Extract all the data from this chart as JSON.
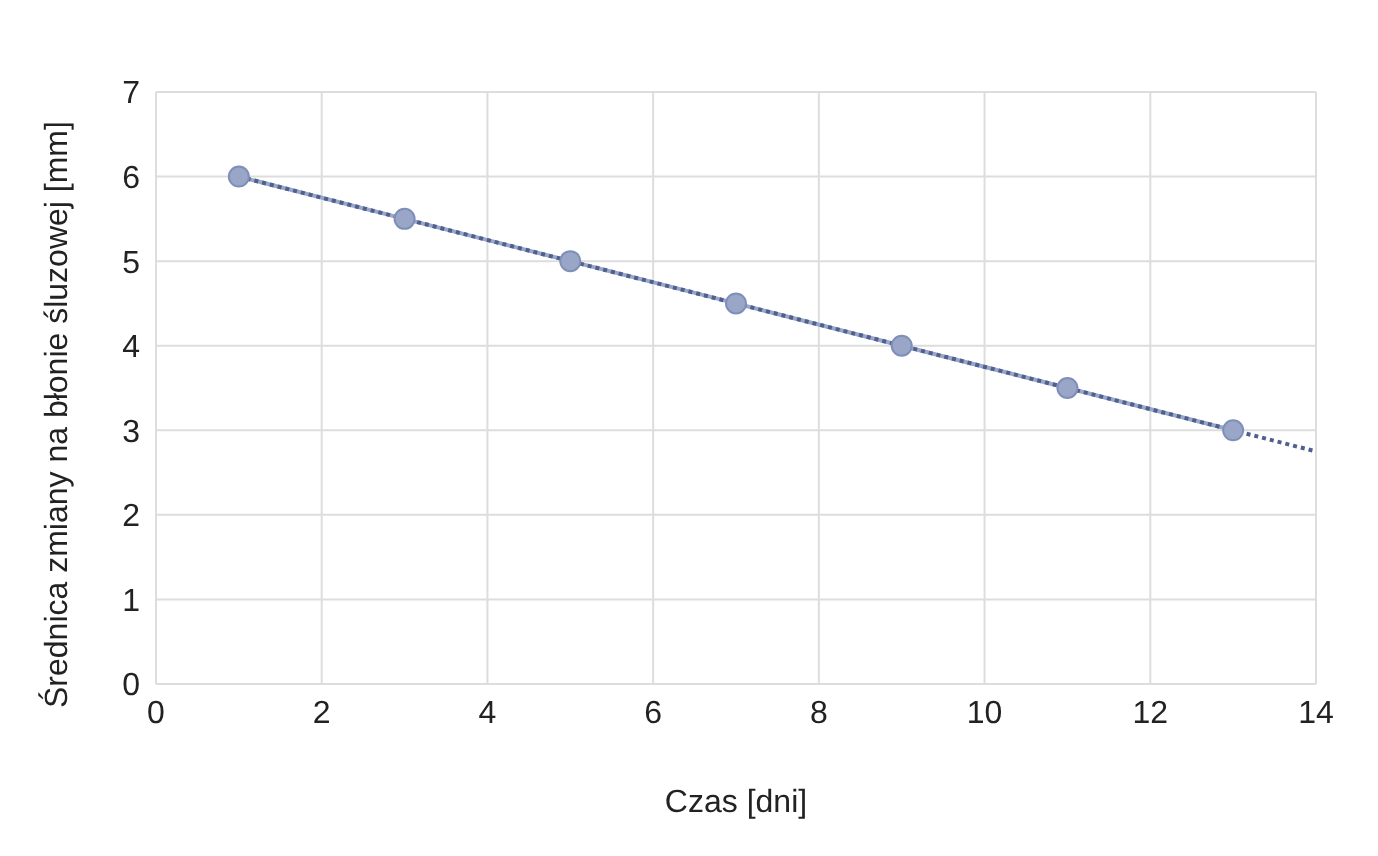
{
  "chart_data": {
    "type": "line",
    "xlabel": "Czas [dni]",
    "ylabel": "Średnica zmiany na błonie śluzowej [mm]",
    "xlim": [
      0,
      14
    ],
    "xticks": [
      0,
      2,
      4,
      6,
      8,
      10,
      12,
      14
    ],
    "ylim": [
      0,
      7
    ],
    "yticks": [
      0,
      1,
      2,
      3,
      4,
      5,
      6,
      7
    ],
    "grid": true,
    "series": [
      {
        "color": "#9aa6c8",
        "marker": "circle",
        "line_style": "solid",
        "x": [
          1,
          3,
          5,
          7,
          9,
          11,
          13
        ],
        "values": [
          6,
          5.5,
          5,
          4.5,
          4,
          3.5,
          3
        ]
      },
      {
        "color": "#4f5f8f",
        "marker": "none",
        "line_style": "dotted",
        "x": [
          1,
          14
        ],
        "values": [
          6,
          2.75
        ]
      }
    ]
  }
}
